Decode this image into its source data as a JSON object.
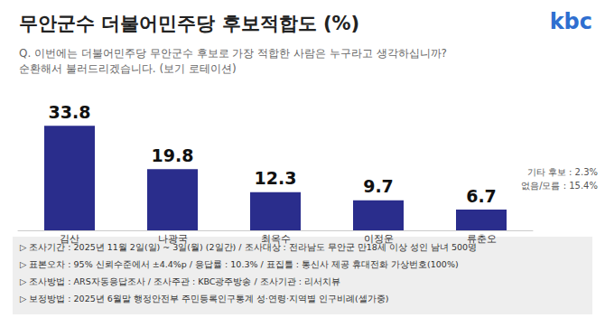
{
  "chart_data": {
    "type": "bar",
    "title": "무안군수 더불어민주당 후보적합도 (%)",
    "subtitle": "Q. 이번에는 더불어민주당 무안군수 후보로 가장 적합한 사람은 누구라고 생각하십니까?\n순환해서 불러드리겠습니다. (보기 로테이션)",
    "categories": [
      "김산",
      "나광국",
      "최옥수",
      "이정운",
      "류춘오"
    ],
    "values": [
      33.8,
      19.8,
      12.3,
      9.7,
      6.7
    ],
    "color": "#2a2d8c",
    "ylim": [
      0,
      40
    ],
    "yticks": [
      0,
      40
    ],
    "grid": false,
    "data_labels": true,
    "tick_labels": "x",
    "annotations": {
      "logo": "kbc",
      "others": [
        "기타 후보 : 2.3%",
        "없음/모름 : 15.4%"
      ],
      "footnotes": [
        "▷ 조사기간 : 2025년 11월 2일(일) ~ 3일(월) (2일간) / 조사대상 : 전라남도 무안군 만18세 이상 성인 남녀 500명",
        "▷ 표본오차 : 95% 신뢰수준에서 ±4.4%p / 응답률 : 10.3% / 표집틀 : 통신사 제공 휴대전화 가상번호(100%)",
        "▷ 조사방법 : ARS자동응답조사 / 조사주관 : KBC광주방송 / 조사기관 : 리서치뷰",
        "▷ 보정방법 : 2025년 6월말 행정안전부 주민등록인구통계 성·연령·지역별 인구비례(셀가중)"
      ]
    }
  }
}
